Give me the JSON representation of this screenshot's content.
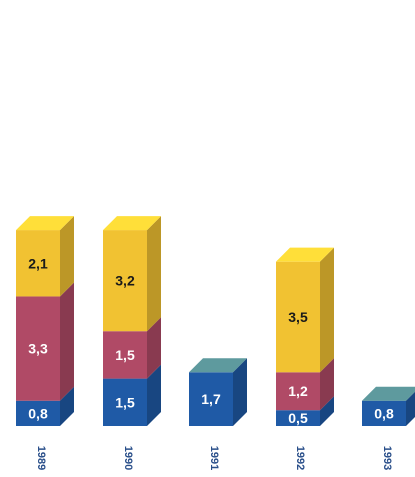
{
  "chart_data": {
    "type": "bar",
    "stacked": true,
    "style": "3d",
    "categories": [
      "1989",
      "1990",
      "1991",
      "1992",
      "1993"
    ],
    "series": [
      {
        "color": "#1f5aa6",
        "values": [
          "0,8",
          "1,5",
          "1,7",
          "0,5",
          "0,8"
        ],
        "numeric": [
          0.8,
          1.5,
          1.7,
          0.5,
          0.8
        ]
      },
      {
        "color": "#b04a66",
        "values": [
          "3,3",
          "1,5",
          null,
          "1,2",
          null
        ],
        "numeric": [
          3.3,
          1.5,
          0,
          1.2,
          0
        ]
      },
      {
        "color": "#f1c232",
        "values": [
          "2,1",
          "3,2",
          null,
          "3,5",
          null
        ],
        "numeric": [
          2.1,
          3.2,
          0,
          3.5,
          0
        ]
      }
    ],
    "title": "",
    "xlabel": "",
    "ylabel": "",
    "grid": false,
    "legend": "none"
  },
  "colors": {
    "blue": "#1f5aa6",
    "magenta": "#b04a66",
    "yellow": "#f1c232",
    "teal_top": "#5e9a9e",
    "year_text": "#2a4f8a"
  }
}
